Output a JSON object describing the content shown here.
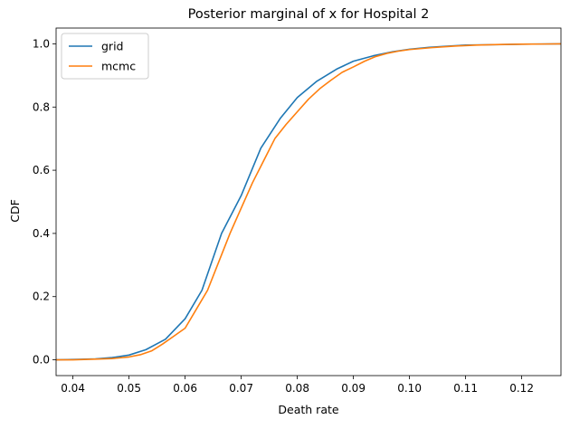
{
  "chart_data": {
    "type": "line",
    "title": "Posterior marginal of x for Hospital 2",
    "xlabel": "Death rate",
    "ylabel": "CDF",
    "xlim": [
      0.037,
      0.127
    ],
    "ylim": [
      -0.05,
      1.05
    ],
    "xticks": [
      0.04,
      0.05,
      0.06,
      0.07,
      0.08,
      0.09,
      0.1,
      0.11,
      0.12
    ],
    "xtick_labels": [
      "0.04",
      "0.05",
      "0.06",
      "0.07",
      "0.08",
      "0.09",
      "0.10",
      "0.11",
      "0.12"
    ],
    "yticks": [
      0.0,
      0.2,
      0.4,
      0.6,
      0.8,
      1.0
    ],
    "ytick_labels": [
      "0.0",
      "0.2",
      "0.4",
      "0.6",
      "0.8",
      "1.0"
    ],
    "grid": false,
    "legend_position": "upper-left",
    "series": [
      {
        "name": "grid",
        "color": "#1f77b4",
        "x": [
          0.037,
          0.04,
          0.044,
          0.047,
          0.05,
          0.053,
          0.0565,
          0.06,
          0.063,
          0.0665,
          0.07,
          0.0735,
          0.077,
          0.08,
          0.0835,
          0.087,
          0.09,
          0.0935,
          0.097,
          0.1,
          0.1035,
          0.107,
          0.11,
          0.1135,
          0.117,
          0.12,
          0.1235,
          0.127
        ],
        "y": [
          0.0,
          0.001,
          0.003,
          0.007,
          0.015,
          0.032,
          0.065,
          0.13,
          0.22,
          0.4,
          0.52,
          0.67,
          0.765,
          0.83,
          0.882,
          0.92,
          0.945,
          0.962,
          0.975,
          0.983,
          0.989,
          0.993,
          0.996,
          0.997,
          0.998,
          0.999,
          0.9995,
          1.0
        ]
      },
      {
        "name": "mcmc",
        "color": "#ff7f0e",
        "x": [
          0.037,
          0.04,
          0.044,
          0.047,
          0.05,
          0.052,
          0.054,
          0.056,
          0.058,
          0.06,
          0.062,
          0.064,
          0.066,
          0.068,
          0.07,
          0.072,
          0.074,
          0.076,
          0.078,
          0.08,
          0.082,
          0.084,
          0.086,
          0.088,
          0.09,
          0.092,
          0.094,
          0.096,
          0.098,
          0.1,
          0.104,
          0.108,
          0.112,
          0.116,
          0.12,
          0.124,
          0.127
        ],
        "y": [
          0.0,
          0.0,
          0.002,
          0.004,
          0.009,
          0.016,
          0.028,
          0.05,
          0.075,
          0.1,
          0.16,
          0.22,
          0.31,
          0.4,
          0.48,
          0.56,
          0.63,
          0.7,
          0.745,
          0.785,
          0.825,
          0.858,
          0.885,
          0.91,
          0.927,
          0.945,
          0.96,
          0.97,
          0.977,
          0.982,
          0.988,
          0.993,
          0.996,
          0.998,
          0.999,
          0.9995,
          1.0
        ]
      }
    ]
  }
}
